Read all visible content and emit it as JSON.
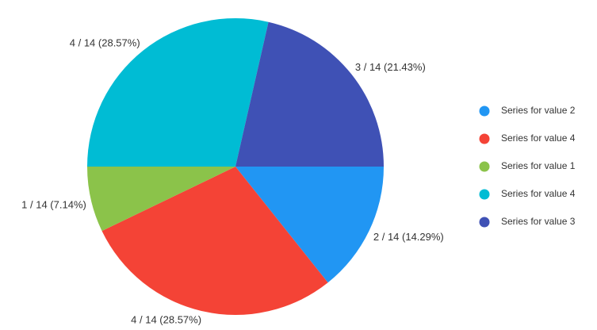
{
  "chart_data": {
    "type": "pie",
    "categories": [
      "Series for value 2",
      "Series for value 4",
      "Series for value 1",
      "Series for value 4",
      "Series for value 3"
    ],
    "values": [
      2,
      4,
      1,
      4,
      3
    ],
    "value_labels": [
      "2 / 14 (14.29%)",
      "4 / 14 (28.57%)",
      "1 / 14 (7.14%)",
      "4 / 14 (28.57%)",
      "3 / 14 (21.43%)"
    ],
    "colors": [
      "#2196f3",
      "#f44336",
      "#8bc34a",
      "#00bcd4",
      "#3f51b5"
    ],
    "legend": "right"
  }
}
